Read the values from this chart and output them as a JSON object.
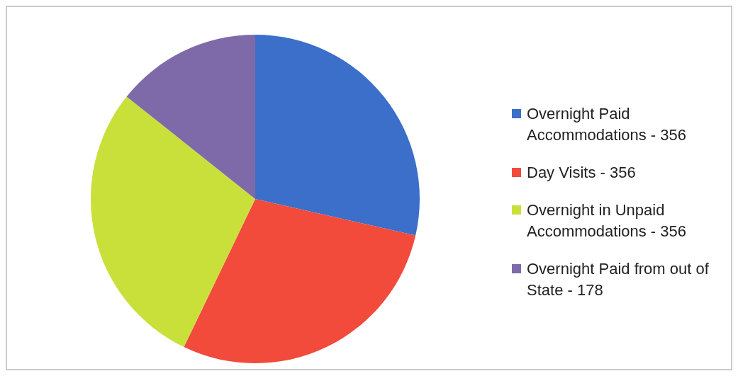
{
  "chart_data": {
    "type": "pie",
    "categories": [
      "Overnight Paid Accommodations - 356",
      "Day Visits - 356",
      "Overnight in Unpaid Accommodations - 356",
      "Overnight Paid from out of State - 178"
    ],
    "values": [
      28.57,
      28.57,
      28.57,
      14.29
    ],
    "colors": [
      "#3b6fc9",
      "#f24a3b",
      "#c9e03b",
      "#7f6aa9"
    ],
    "legend": "right"
  }
}
